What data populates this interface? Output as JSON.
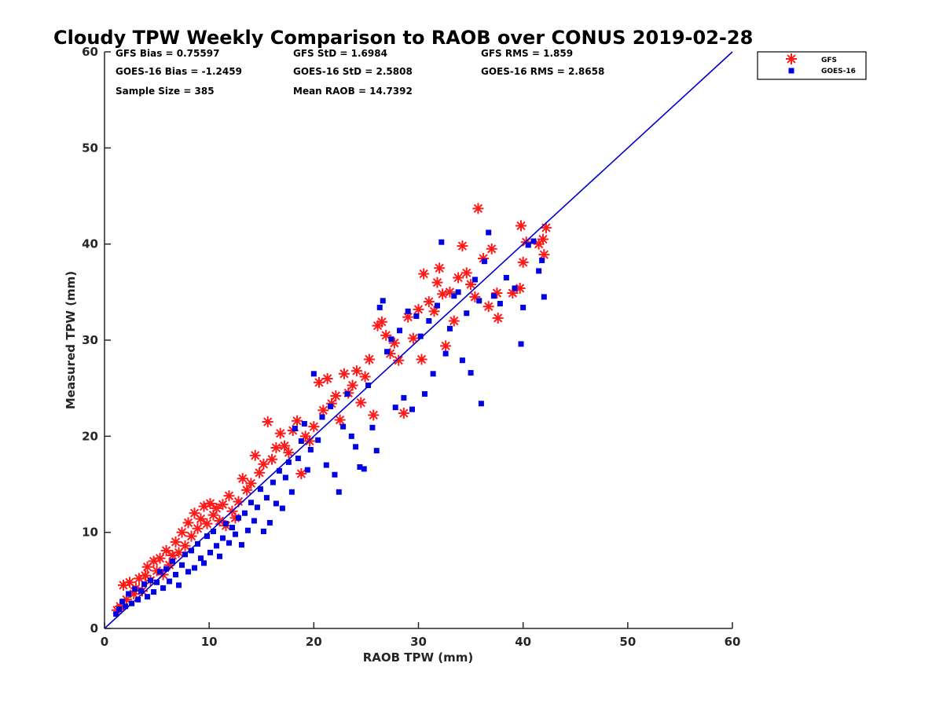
{
  "chart_data": {
    "type": "scatter",
    "title": "Cloudy TPW Weekly Comparison to RAOB over CONUS 2019-02-28",
    "xlabel": "RAOB TPW (mm)",
    "ylabel": "Measured TPW (mm)",
    "xlim": [
      0,
      60
    ],
    "ylim": [
      0,
      60
    ],
    "xticks": [
      "0",
      "10",
      "20",
      "30",
      "40",
      "50",
      "60"
    ],
    "yticks": [
      "0",
      "10",
      "20",
      "30",
      "40",
      "50",
      "60"
    ],
    "grid": false,
    "legend_position": "top-right outside",
    "stats": [
      "GFS Bias = 0.75597",
      "GFS StD = 1.6984",
      "GFS RMS = 1.859",
      "GOES-16 Bias = -1.2459",
      "GOES-16 StD = 2.5808",
      "GOES-16 RMS = 2.8658",
      "Sample Size = 385",
      "Mean RAOB = 14.7392"
    ],
    "reference_line": {
      "x": [
        0,
        60
      ],
      "y": [
        0,
        60
      ],
      "color": "#0000cc"
    },
    "series": [
      {
        "name": "GFS",
        "marker": "asterisk",
        "color": "#ff1a1a",
        "points": [
          [
            1.2,
            1.9
          ],
          [
            1.5,
            2.3
          ],
          [
            1.8,
            4.5
          ],
          [
            2.1,
            3.0
          ],
          [
            2.4,
            4.8
          ],
          [
            2.8,
            3.6
          ],
          [
            3.0,
            4.2
          ],
          [
            3.3,
            5.2
          ],
          [
            3.6,
            3.9
          ],
          [
            3.9,
            5.5
          ],
          [
            4.1,
            6.4
          ],
          [
            4.4,
            5.0
          ],
          [
            4.7,
            7.0
          ],
          [
            5.0,
            6.0
          ],
          [
            5.3,
            7.3
          ],
          [
            5.6,
            5.6
          ],
          [
            5.9,
            8.1
          ],
          [
            6.2,
            6.6
          ],
          [
            6.5,
            7.6
          ],
          [
            6.8,
            9.0
          ],
          [
            7.1,
            7.9
          ],
          [
            7.4,
            10.0
          ],
          [
            7.7,
            8.6
          ],
          [
            8.0,
            11.0
          ],
          [
            8.3,
            9.6
          ],
          [
            8.6,
            12.0
          ],
          [
            8.9,
            10.4
          ],
          [
            9.2,
            11.4
          ],
          [
            9.5,
            12.7
          ],
          [
            9.8,
            10.9
          ],
          [
            10.1,
            13.0
          ],
          [
            10.4,
            11.8
          ],
          [
            10.7,
            12.5
          ],
          [
            11.0,
            11.2
          ],
          [
            11.3,
            12.9
          ],
          [
            11.6,
            10.7
          ],
          [
            11.9,
            13.8
          ],
          [
            12.2,
            12.2
          ],
          [
            12.5,
            11.5
          ],
          [
            12.8,
            13.2
          ],
          [
            13.2,
            15.6
          ],
          [
            13.6,
            14.4
          ],
          [
            14.0,
            15.1
          ],
          [
            14.4,
            18.0
          ],
          [
            14.8,
            16.2
          ],
          [
            15.2,
            17.1
          ],
          [
            15.6,
            21.5
          ],
          [
            16.0,
            17.6
          ],
          [
            16.4,
            18.8
          ],
          [
            16.8,
            20.3
          ],
          [
            17.2,
            19.0
          ],
          [
            17.6,
            18.3
          ],
          [
            18.0,
            20.6
          ],
          [
            18.4,
            21.6
          ],
          [
            18.8,
            16.1
          ],
          [
            19.2,
            20.0
          ],
          [
            19.6,
            19.5
          ],
          [
            20.0,
            21.0
          ],
          [
            20.5,
            25.6
          ],
          [
            20.9,
            22.7
          ],
          [
            21.3,
            26.0
          ],
          [
            21.7,
            23.4
          ],
          [
            22.1,
            24.2
          ],
          [
            22.5,
            21.7
          ],
          [
            22.9,
            26.5
          ],
          [
            23.3,
            24.5
          ],
          [
            23.7,
            25.3
          ],
          [
            24.1,
            26.8
          ],
          [
            24.5,
            23.5
          ],
          [
            24.9,
            26.2
          ],
          [
            25.3,
            28.0
          ],
          [
            25.7,
            22.2
          ],
          [
            26.1,
            31.5
          ],
          [
            26.5,
            31.9
          ],
          [
            26.9,
            30.5
          ],
          [
            27.3,
            28.6
          ],
          [
            27.7,
            29.7
          ],
          [
            28.1,
            27.9
          ],
          [
            28.6,
            22.4
          ],
          [
            29.0,
            32.4
          ],
          [
            29.5,
            30.2
          ],
          [
            30.0,
            33.2
          ],
          [
            30.3,
            28.0
          ],
          [
            30.5,
            36.9
          ],
          [
            31.0,
            34.0
          ],
          [
            31.5,
            33.0
          ],
          [
            31.8,
            36.0
          ],
          [
            32.0,
            37.5
          ],
          [
            32.3,
            34.8
          ],
          [
            32.6,
            29.4
          ],
          [
            33.0,
            35.0
          ],
          [
            33.4,
            32.0
          ],
          [
            33.8,
            36.5
          ],
          [
            34.2,
            39.8
          ],
          [
            34.6,
            37.0
          ],
          [
            35.0,
            35.8
          ],
          [
            35.4,
            34.5
          ],
          [
            35.7,
            43.7
          ],
          [
            36.2,
            38.5
          ],
          [
            36.7,
            33.5
          ],
          [
            37.0,
            39.5
          ],
          [
            37.5,
            34.9
          ],
          [
            37.6,
            32.3
          ],
          [
            39.0,
            34.9
          ],
          [
            39.7,
            35.4
          ],
          [
            39.8,
            41.9
          ],
          [
            40.0,
            38.1
          ],
          [
            40.3,
            40.2
          ],
          [
            41.5,
            40.0
          ],
          [
            42.0,
            38.9
          ],
          [
            42.2,
            41.7
          ],
          [
            41.9,
            40.5
          ]
        ]
      },
      {
        "name": "GOES-16",
        "marker": "square",
        "color": "#0000e6",
        "points": [
          [
            1.1,
            1.5
          ],
          [
            1.4,
            2.0
          ],
          [
            1.7,
            2.8
          ],
          [
            2.0,
            2.3
          ],
          [
            2.3,
            3.6
          ],
          [
            2.6,
            2.6
          ],
          [
            2.9,
            4.1
          ],
          [
            3.2,
            3.0
          ],
          [
            3.5,
            3.9
          ],
          [
            3.8,
            4.6
          ],
          [
            4.1,
            3.3
          ],
          [
            4.4,
            5.0
          ],
          [
            4.7,
            3.8
          ],
          [
            5.0,
            4.8
          ],
          [
            5.3,
            5.9
          ],
          [
            5.6,
            4.2
          ],
          [
            5.9,
            6.2
          ],
          [
            6.2,
            4.9
          ],
          [
            6.5,
            7.0
          ],
          [
            6.8,
            5.6
          ],
          [
            7.1,
            4.5
          ],
          [
            7.4,
            6.6
          ],
          [
            7.7,
            7.7
          ],
          [
            8.0,
            5.9
          ],
          [
            8.3,
            8.1
          ],
          [
            8.6,
            6.3
          ],
          [
            8.9,
            8.8
          ],
          [
            9.2,
            7.3
          ],
          [
            9.5,
            6.8
          ],
          [
            9.8,
            9.6
          ],
          [
            10.1,
            7.9
          ],
          [
            10.4,
            10.1
          ],
          [
            10.7,
            8.6
          ],
          [
            11.0,
            7.5
          ],
          [
            11.3,
            9.4
          ],
          [
            11.6,
            10.9
          ],
          [
            11.9,
            8.9
          ],
          [
            12.2,
            10.5
          ],
          [
            12.5,
            9.8
          ],
          [
            12.8,
            11.5
          ],
          [
            13.1,
            8.7
          ],
          [
            13.4,
            12.0
          ],
          [
            13.7,
            10.2
          ],
          [
            14.0,
            13.1
          ],
          [
            14.3,
            11.2
          ],
          [
            14.6,
            12.6
          ],
          [
            14.9,
            14.5
          ],
          [
            15.2,
            10.1
          ],
          [
            15.5,
            13.6
          ],
          [
            15.8,
            11.0
          ],
          [
            16.1,
            15.2
          ],
          [
            16.4,
            13.0
          ],
          [
            16.7,
            16.4
          ],
          [
            17.0,
            12.5
          ],
          [
            17.3,
            15.7
          ],
          [
            17.6,
            17.3
          ],
          [
            17.9,
            14.2
          ],
          [
            18.2,
            20.8
          ],
          [
            18.5,
            17.7
          ],
          [
            18.8,
            19.5
          ],
          [
            19.1,
            21.3
          ],
          [
            19.4,
            16.5
          ],
          [
            19.7,
            18.6
          ],
          [
            20.0,
            26.5
          ],
          [
            20.4,
            19.6
          ],
          [
            20.8,
            22.0
          ],
          [
            21.2,
            17.0
          ],
          [
            21.6,
            23.1
          ],
          [
            22.0,
            16.0
          ],
          [
            22.4,
            14.2
          ],
          [
            22.8,
            21.0
          ],
          [
            23.2,
            24.4
          ],
          [
            23.6,
            20.0
          ],
          [
            24.0,
            18.9
          ],
          [
            24.4,
            16.8
          ],
          [
            24.8,
            16.6
          ],
          [
            25.2,
            25.3
          ],
          [
            25.6,
            20.9
          ],
          [
            26.0,
            18.5
          ],
          [
            26.3,
            33.4
          ],
          [
            26.6,
            34.1
          ],
          [
            27.0,
            28.8
          ],
          [
            27.4,
            30.1
          ],
          [
            27.8,
            23.0
          ],
          [
            28.2,
            31.0
          ],
          [
            28.6,
            24.0
          ],
          [
            29.0,
            33.0
          ],
          [
            29.4,
            22.8
          ],
          [
            29.8,
            32.5
          ],
          [
            30.2,
            30.4
          ],
          [
            30.6,
            24.4
          ],
          [
            31.0,
            32.0
          ],
          [
            31.4,
            26.5
          ],
          [
            31.8,
            33.6
          ],
          [
            32.2,
            40.2
          ],
          [
            32.6,
            28.6
          ],
          [
            33.0,
            31.2
          ],
          [
            33.4,
            34.6
          ],
          [
            33.8,
            35.0
          ],
          [
            34.2,
            27.9
          ],
          [
            34.6,
            32.8
          ],
          [
            35.0,
            26.6
          ],
          [
            35.4,
            36.3
          ],
          [
            35.8,
            34.1
          ],
          [
            36.0,
            23.4
          ],
          [
            36.3,
            38.2
          ],
          [
            36.7,
            41.2
          ],
          [
            37.2,
            34.6
          ],
          [
            37.8,
            33.8
          ],
          [
            38.4,
            36.5
          ],
          [
            39.2,
            35.4
          ],
          [
            39.8,
            29.6
          ],
          [
            40.0,
            33.4
          ],
          [
            40.5,
            39.9
          ],
          [
            41.0,
            40.3
          ],
          [
            41.5,
            37.2
          ],
          [
            42.0,
            34.5
          ],
          [
            41.8,
            38.3
          ]
        ]
      }
    ]
  }
}
